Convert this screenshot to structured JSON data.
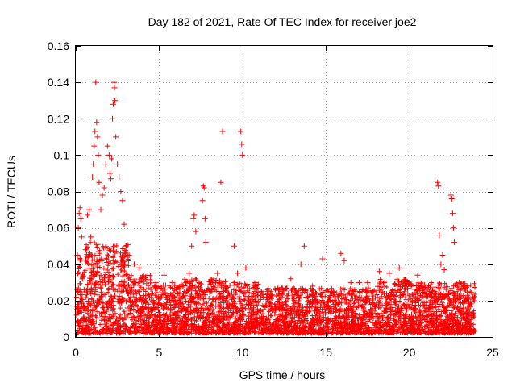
{
  "chart_data": {
    "type": "scatter",
    "title": "Day 182 of 2021, Rate Of TEC Index for receiver joe2",
    "xlabel": "GPS time / hours",
    "ylabel": "ROTI / TECUs",
    "xlim": [
      0,
      25
    ],
    "ylim": [
      0,
      0.16
    ],
    "xticks": [
      0,
      5,
      10,
      15,
      20,
      25
    ],
    "xtick_labels": [
      "0",
      "5",
      "10",
      "15",
      "20",
      "25"
    ],
    "yticks": [
      0,
      0.02,
      0.04,
      0.06,
      0.08,
      0.1,
      0.12,
      0.14,
      0.16
    ],
    "ytick_labels": [
      "0",
      "0.02",
      "0.04",
      "0.06",
      "0.08",
      "0.1",
      "0.12",
      "0.14",
      "0.16"
    ],
    "grid": true,
    "marker": "plus",
    "series_color": "#ff0000",
    "series": [
      {
        "name": "ROTI",
        "points": [
          [
            0.05,
            0.012
          ],
          [
            0.1,
            0.045
          ],
          [
            0.15,
            0.06
          ],
          [
            0.2,
            0.068
          ],
          [
            0.25,
            0.071
          ],
          [
            0.3,
            0.065
          ],
          [
            0.35,
            0.055
          ],
          [
            0.4,
            0.032
          ],
          [
            0.5,
            0.026
          ],
          [
            0.6,
            0.048
          ],
          [
            0.7,
            0.067
          ],
          [
            0.8,
            0.07
          ],
          [
            0.9,
            0.055
          ],
          [
            1.0,
            0.088
          ],
          [
            1.05,
            0.095
          ],
          [
            1.1,
            0.105
          ],
          [
            1.15,
            0.113
          ],
          [
            1.2,
            0.14
          ],
          [
            1.25,
            0.118
          ],
          [
            1.3,
            0.11
          ],
          [
            1.35,
            0.1
          ],
          [
            1.4,
            0.085
          ],
          [
            1.5,
            0.07
          ],
          [
            1.6,
            0.078
          ],
          [
            1.7,
            0.082
          ],
          [
            1.8,
            0.095
          ],
          [
            1.9,
            0.105
          ],
          [
            2.0,
            0.1
          ],
          [
            2.05,
            0.09
          ],
          [
            2.1,
            0.087
          ],
          [
            2.15,
            0.098
          ],
          [
            2.2,
            0.12
          ],
          [
            2.25,
            0.128
          ],
          [
            2.3,
            0.14
          ],
          [
            2.32,
            0.137
          ],
          [
            2.35,
            0.13
          ],
          [
            2.4,
            0.11
          ],
          [
            2.5,
            0.095
          ],
          [
            2.6,
            0.088
          ],
          [
            2.7,
            0.08
          ],
          [
            2.8,
            0.075
          ],
          [
            2.9,
            0.062
          ],
          [
            3.0,
            0.05
          ],
          [
            3.2,
            0.045
          ],
          [
            3.5,
            0.04
          ],
          [
            3.8,
            0.038
          ],
          [
            4.2,
            0.033
          ],
          [
            4.8,
            0.03
          ],
          [
            5.3,
            0.034
          ],
          [
            5.8,
            0.03
          ],
          [
            6.3,
            0.028
          ],
          [
            6.8,
            0.035
          ],
          [
            6.95,
            0.05
          ],
          [
            7.05,
            0.065
          ],
          [
            7.1,
            0.067
          ],
          [
            7.2,
            0.058
          ],
          [
            7.6,
            0.075
          ],
          [
            7.65,
            0.083
          ],
          [
            7.7,
            0.082
          ],
          [
            7.75,
            0.065
          ],
          [
            7.8,
            0.052
          ],
          [
            8.2,
            0.03
          ],
          [
            8.5,
            0.035
          ],
          [
            8.7,
            0.085
          ],
          [
            8.8,
            0.113
          ],
          [
            9.5,
            0.05
          ],
          [
            9.7,
            0.035
          ],
          [
            9.9,
            0.113
          ],
          [
            9.95,
            0.106
          ],
          [
            10.0,
            0.1
          ],
          [
            10.2,
            0.038
          ],
          [
            10.8,
            0.03
          ],
          [
            11.5,
            0.025
          ],
          [
            12.2,
            0.026
          ],
          [
            12.9,
            0.032
          ],
          [
            13.5,
            0.04
          ],
          [
            13.7,
            0.05
          ],
          [
            14.2,
            0.028
          ],
          [
            14.8,
            0.043
          ],
          [
            15.3,
            0.025
          ],
          [
            15.9,
            0.046
          ],
          [
            16.1,
            0.042
          ],
          [
            16.5,
            0.03
          ],
          [
            17.0,
            0.03
          ],
          [
            17.5,
            0.03
          ],
          [
            18.2,
            0.036
          ],
          [
            18.8,
            0.035
          ],
          [
            19.4,
            0.038
          ],
          [
            19.9,
            0.03
          ],
          [
            20.5,
            0.034
          ],
          [
            21.2,
            0.025
          ],
          [
            21.7,
            0.085
          ],
          [
            21.75,
            0.083
          ],
          [
            21.8,
            0.056
          ],
          [
            21.9,
            0.04
          ],
          [
            22.0,
            0.045
          ],
          [
            22.1,
            0.037
          ],
          [
            22.5,
            0.078
          ],
          [
            22.55,
            0.076
          ],
          [
            22.6,
            0.068
          ],
          [
            22.65,
            0.06
          ],
          [
            22.7,
            0.052
          ],
          [
            23.0,
            0.03
          ],
          [
            23.5,
            0.028
          ],
          [
            23.9,
            0.02
          ]
        ]
      }
    ]
  }
}
